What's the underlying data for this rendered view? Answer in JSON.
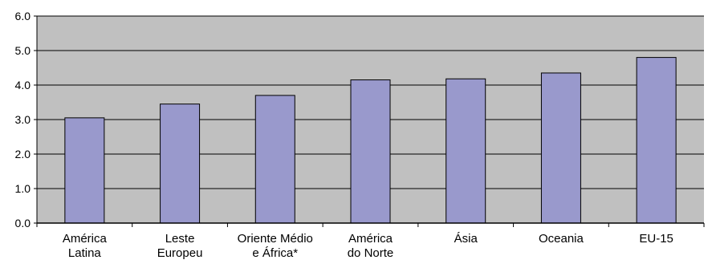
{
  "chart_data": {
    "type": "bar",
    "categories": [
      [
        "América",
        "Latina"
      ],
      [
        "Leste",
        "Europeu"
      ],
      [
        "Oriente Médio",
        "e África*"
      ],
      [
        "América",
        "do Norte"
      ],
      [
        "Ásia"
      ],
      [
        "Oceania"
      ],
      [
        "EU-15"
      ]
    ],
    "values": [
      3.05,
      3.45,
      3.7,
      4.15,
      4.18,
      4.35,
      4.8
    ],
    "title": "",
    "xlabel": "",
    "ylabel": "",
    "ylim": [
      0,
      6
    ],
    "yticks": [
      "0.0",
      "1.0",
      "2.0",
      "3.0",
      "4.0",
      "5.0",
      "6.0"
    ],
    "grid": true,
    "colors": {
      "plot_background": "#c0c0c0",
      "bar_fill": "#9999cc",
      "bar_stroke": "#000000",
      "gridline": "#000000"
    }
  }
}
